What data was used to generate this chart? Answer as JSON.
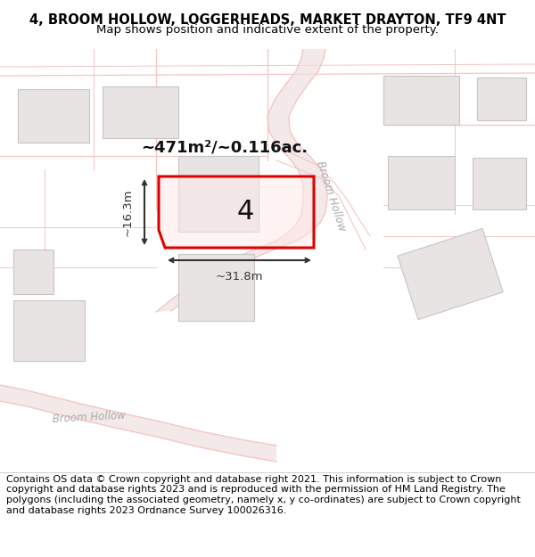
{
  "title_line1": "4, BROOM HOLLOW, LOGGERHEADS, MARKET DRAYTON, TF9 4NT",
  "title_line2": "Map shows position and indicative extent of the property.",
  "footer_text": "Contains OS data © Crown copyright and database right 2021. This information is subject to Crown copyright and database rights 2023 and is reproduced with the permission of HM Land Registry. The polygons (including the associated geometry, namely x, y co-ordinates) are subject to Crown copyright and database rights 2023 Ordnance Survey 100026316.",
  "bg_color": "#ffffff",
  "map_bg": "#ffffff",
  "road_color": "#f5c5c5",
  "road_fill": "#f0d8d8",
  "building_color": "#e8e4e4",
  "building_edge": "#c8c4c4",
  "road_label_color": "#aaaaaa",
  "highlight_color": "#dd0000",
  "measure_color": "#333333",
  "area_label": "~471m²/~0.116ac.",
  "plot_label": "4",
  "dim_width": "~31.8m",
  "dim_height": "~16.3m",
  "title_fontsize": 10.5,
  "subtitle_fontsize": 9.5,
  "footer_fontsize": 8.0
}
